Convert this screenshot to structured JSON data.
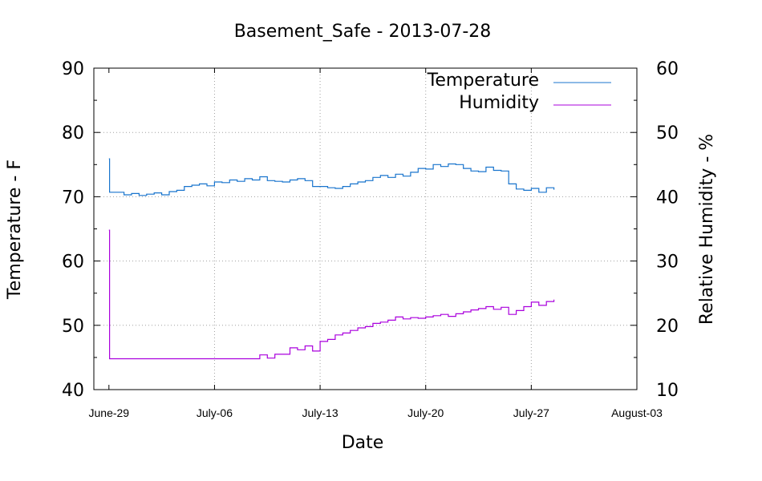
{
  "chart_data": {
    "type": "line",
    "title": "Basement_Safe - 2013-07-28",
    "xlabel": "Date",
    "ylabel": "Temperature - F",
    "y2label": "Relative Humidity - %",
    "x_ticks": [
      "June-29",
      "July-06",
      "July-13",
      "July-20",
      "July-27",
      "August-03"
    ],
    "xlim": [
      "2013-06-28",
      "2013-08-03"
    ],
    "ylim": [
      40,
      90
    ],
    "y2lim": [
      10,
      60
    ],
    "y_ticks": [
      40,
      50,
      60,
      70,
      80,
      90
    ],
    "y2_ticks": [
      10,
      20,
      30,
      40,
      50,
      60
    ],
    "grid": true,
    "legend_position": "top-right",
    "colors": {
      "temperature": "#1874CD",
      "humidity": "#AA00DD",
      "grid": "#A0A0A0"
    },
    "series": [
      {
        "name": "Temperature",
        "axis": "left",
        "points": [
          [
            "2013-06-29T00:00",
            75.9
          ],
          [
            "2013-06-29T01:00",
            70.7
          ],
          [
            "2013-06-29T12:00",
            70.7
          ],
          [
            "2013-06-30T00:00",
            70.3
          ],
          [
            "2013-06-30T12:00",
            70.5
          ],
          [
            "2013-07-01T00:00",
            70.2
          ],
          [
            "2013-07-01T12:00",
            70.4
          ],
          [
            "2013-07-02T00:00",
            70.6
          ],
          [
            "2013-07-02T12:00",
            70.3
          ],
          [
            "2013-07-03T00:00",
            70.8
          ],
          [
            "2013-07-03T12:00",
            71.0
          ],
          [
            "2013-07-04T00:00",
            71.6
          ],
          [
            "2013-07-04T12:00",
            71.8
          ],
          [
            "2013-07-05T00:00",
            72.0
          ],
          [
            "2013-07-05T12:00",
            71.7
          ],
          [
            "2013-07-06T00:00",
            72.3
          ],
          [
            "2013-07-06T12:00",
            72.2
          ],
          [
            "2013-07-07T00:00",
            72.6
          ],
          [
            "2013-07-07T12:00",
            72.4
          ],
          [
            "2013-07-08T00:00",
            72.8
          ],
          [
            "2013-07-08T12:00",
            72.6
          ],
          [
            "2013-07-09T00:00",
            73.1
          ],
          [
            "2013-07-09T12:00",
            72.5
          ],
          [
            "2013-07-10T00:00",
            72.4
          ],
          [
            "2013-07-10T12:00",
            72.3
          ],
          [
            "2013-07-11T00:00",
            72.6
          ],
          [
            "2013-07-11T12:00",
            72.8
          ],
          [
            "2013-07-12T00:00",
            72.5
          ],
          [
            "2013-07-12T12:00",
            71.6
          ],
          [
            "2013-07-13T00:00",
            71.6
          ],
          [
            "2013-07-13T12:00",
            71.4
          ],
          [
            "2013-07-14T00:00",
            71.3
          ],
          [
            "2013-07-14T12:00",
            71.6
          ],
          [
            "2013-07-15T00:00",
            72.0
          ],
          [
            "2013-07-15T12:00",
            72.3
          ],
          [
            "2013-07-16T00:00",
            72.5
          ],
          [
            "2013-07-16T12:00",
            73.0
          ],
          [
            "2013-07-17T00:00",
            73.3
          ],
          [
            "2013-07-17T12:00",
            73.0
          ],
          [
            "2013-07-18T00:00",
            73.5
          ],
          [
            "2013-07-18T12:00",
            73.2
          ],
          [
            "2013-07-19T00:00",
            73.8
          ],
          [
            "2013-07-19T12:00",
            74.4
          ],
          [
            "2013-07-20T00:00",
            74.3
          ],
          [
            "2013-07-20T12:00",
            75.0
          ],
          [
            "2013-07-21T00:00",
            74.7
          ],
          [
            "2013-07-21T12:00",
            75.1
          ],
          [
            "2013-07-22T00:00",
            75.0
          ],
          [
            "2013-07-22T12:00",
            74.4
          ],
          [
            "2013-07-23T00:00",
            74.0
          ],
          [
            "2013-07-23T12:00",
            73.9
          ],
          [
            "2013-07-24T00:00",
            74.6
          ],
          [
            "2013-07-24T12:00",
            74.1
          ],
          [
            "2013-07-25T00:00",
            74.0
          ],
          [
            "2013-07-25T12:00",
            72.0
          ],
          [
            "2013-07-26T00:00",
            71.2
          ],
          [
            "2013-07-26T12:00",
            71.0
          ],
          [
            "2013-07-27T00:00",
            71.3
          ],
          [
            "2013-07-27T12:00",
            70.7
          ],
          [
            "2013-07-28T00:00",
            71.4
          ],
          [
            "2013-07-28T12:00",
            71.1
          ]
        ]
      },
      {
        "name": "Humidity",
        "axis": "right",
        "points": [
          [
            "2013-06-29T00:00",
            34.8
          ],
          [
            "2013-06-29T01:00",
            14.8
          ],
          [
            "2013-07-03T00:00",
            14.8
          ],
          [
            "2013-07-06T00:00",
            14.8
          ],
          [
            "2013-07-08T12:00",
            14.8
          ],
          [
            "2013-07-09T00:00",
            15.4
          ],
          [
            "2013-07-09T12:00",
            14.9
          ],
          [
            "2013-07-10T00:00",
            15.5
          ],
          [
            "2013-07-11T00:00",
            16.5
          ],
          [
            "2013-07-11T12:00",
            16.2
          ],
          [
            "2013-07-12T00:00",
            16.8
          ],
          [
            "2013-07-12T12:00",
            16.0
          ],
          [
            "2013-07-13T00:00",
            17.5
          ],
          [
            "2013-07-13T12:00",
            17.8
          ],
          [
            "2013-07-14T00:00",
            18.5
          ],
          [
            "2013-07-14T12:00",
            18.8
          ],
          [
            "2013-07-15T00:00",
            19.2
          ],
          [
            "2013-07-15T12:00",
            19.6
          ],
          [
            "2013-07-16T00:00",
            19.8
          ],
          [
            "2013-07-16T12:00",
            20.3
          ],
          [
            "2013-07-17T00:00",
            20.5
          ],
          [
            "2013-07-17T12:00",
            20.8
          ],
          [
            "2013-07-18T00:00",
            21.3
          ],
          [
            "2013-07-18T12:00",
            21.0
          ],
          [
            "2013-07-19T00:00",
            21.2
          ],
          [
            "2013-07-19T12:00",
            21.1
          ],
          [
            "2013-07-20T00:00",
            21.3
          ],
          [
            "2013-07-20T12:00",
            21.5
          ],
          [
            "2013-07-21T00:00",
            21.7
          ],
          [
            "2013-07-21T12:00",
            21.4
          ],
          [
            "2013-07-22T00:00",
            21.8
          ],
          [
            "2013-07-22T12:00",
            22.1
          ],
          [
            "2013-07-23T00:00",
            22.4
          ],
          [
            "2013-07-23T12:00",
            22.6
          ],
          [
            "2013-07-24T00:00",
            22.9
          ],
          [
            "2013-07-24T12:00",
            22.5
          ],
          [
            "2013-07-25T00:00",
            22.8
          ],
          [
            "2013-07-25T12:00",
            21.7
          ],
          [
            "2013-07-26T00:00",
            22.3
          ],
          [
            "2013-07-26T12:00",
            22.9
          ],
          [
            "2013-07-27T00:00",
            23.6
          ],
          [
            "2013-07-27T12:00",
            23.1
          ],
          [
            "2013-07-28T00:00",
            23.7
          ],
          [
            "2013-07-28T12:00",
            24.0
          ]
        ]
      }
    ]
  }
}
